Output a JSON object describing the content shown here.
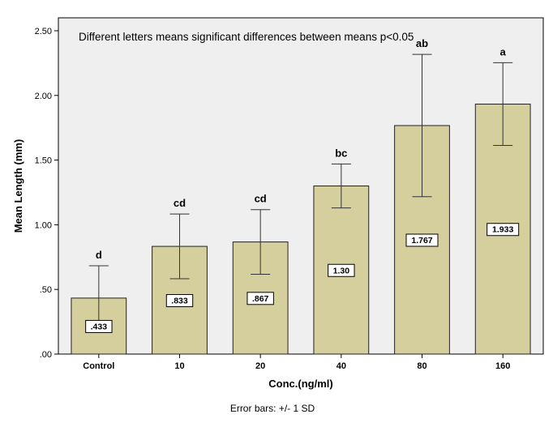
{
  "chart_data": {
    "type": "bar",
    "categories": [
      "Control",
      "10",
      "20",
      "40",
      "80",
      "160"
    ],
    "values": [
      0.433,
      0.833,
      0.867,
      1.3,
      1.767,
      1.933
    ],
    "value_labels": [
      ".433",
      ".833",
      ".867",
      "1.30",
      "1.767",
      "1.933"
    ],
    "error_sd": [
      0.25,
      0.25,
      0.25,
      0.17,
      0.55,
      0.32
    ],
    "letters": [
      "d",
      "cd",
      "cd",
      "bc",
      "ab",
      "a"
    ],
    "ylim": [
      0,
      2.6
    ],
    "yticks": [
      0.0,
      0.5,
      1.0,
      1.5,
      2.0,
      2.5
    ],
    "ytick_labels": [
      ".00",
      ".50",
      "1.00",
      "1.50",
      "2.00",
      "2.50"
    ],
    "xlabel": "Conc.(ng/ml)",
    "ylabel": "Mean Length (mm)",
    "annotation": "Different letters means significant differences between means p<0.05",
    "footnote": "Error bars: +/- 1 SD",
    "grid": false,
    "colors": {
      "bar_fill": "#d5cf9d",
      "bar_stroke": "#222222",
      "plot_bg": "#efefef",
      "error_bar": "#333333"
    }
  }
}
